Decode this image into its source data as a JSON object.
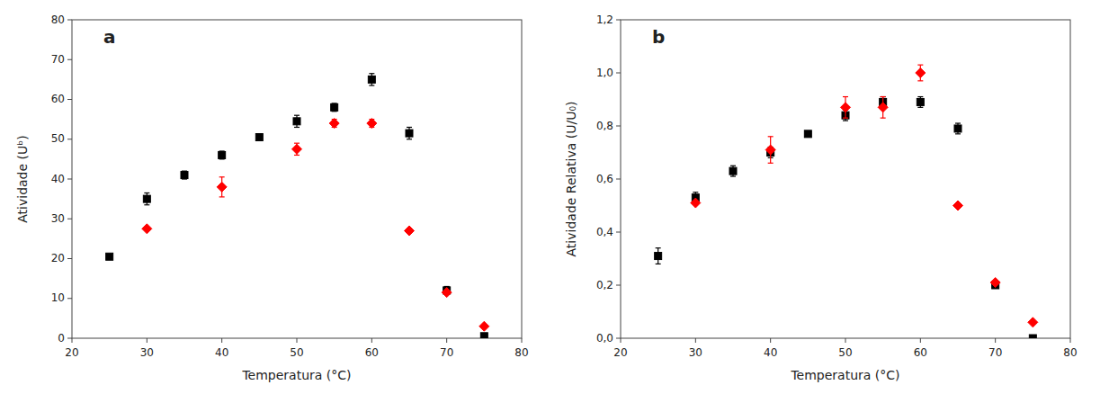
{
  "chart_data": [
    {
      "type": "scatter",
      "annotation": "a",
      "x_label": "Temperatura (°C)",
      "y_label": "Atividade (Uᵇ)",
      "xlim": [
        20,
        80
      ],
      "ylim": [
        0,
        80
      ],
      "xticks": [
        20,
        30,
        40,
        50,
        60,
        70,
        80
      ],
      "yticks": [
        0,
        10,
        20,
        30,
        40,
        50,
        60,
        70,
        80
      ],
      "grid": false,
      "series": [
        {
          "color": "#000000",
          "marker": "square",
          "x": [
            25,
            30,
            35,
            40,
            45,
            50,
            55,
            60,
            65,
            70,
            75
          ],
          "values": [
            20.5,
            35,
            41,
            46,
            50.5,
            54.5,
            58,
            65,
            51.5,
            12,
            0.5
          ],
          "errors": [
            0,
            1.5,
            1,
            1,
            0,
            1.5,
            1,
            1.5,
            1.5,
            1,
            0
          ]
        },
        {
          "color": "#ff0000",
          "marker": "diamond",
          "x": [
            30,
            40,
            50,
            55,
            60,
            65,
            70,
            75
          ],
          "values": [
            27.5,
            38,
            47.5,
            54,
            54,
            27,
            11.5,
            3
          ],
          "errors": [
            0,
            2.5,
            1.5,
            1,
            1,
            0,
            0,
            0
          ]
        }
      ]
    },
    {
      "type": "scatter",
      "annotation": "b",
      "x_label": "Temperatura (°C)",
      "y_label": "Atividade Relativa (U/U₀)",
      "xlim": [
        20,
        80
      ],
      "ylim": [
        0.0,
        1.2
      ],
      "xticks": [
        20,
        30,
        40,
        50,
        60,
        70,
        80
      ],
      "yticks": [
        {
          "value": 0.0,
          "label": "0,0"
        },
        {
          "value": 0.2,
          "label": "0,2"
        },
        {
          "value": 0.4,
          "label": "0,4"
        },
        {
          "value": 0.6,
          "label": "0,6"
        },
        {
          "value": 0.8,
          "label": "0,8"
        },
        {
          "value": 1.0,
          "label": "1,0"
        },
        {
          "value": 1.2,
          "label": "1,2"
        }
      ],
      "grid": false,
      "series": [
        {
          "color": "#000000",
          "marker": "square",
          "x": [
            25,
            30,
            35,
            40,
            45,
            50,
            55,
            60,
            65,
            70,
            75
          ],
          "values": [
            0.31,
            0.53,
            0.63,
            0.7,
            0.77,
            0.84,
            0.89,
            0.89,
            0.79,
            0.2,
            0.0
          ],
          "errors": [
            0.03,
            0.02,
            0.02,
            0.02,
            0.01,
            0.02,
            0.02,
            0.02,
            0.02,
            0.01,
            0
          ]
        },
        {
          "color": "#ff0000",
          "marker": "diamond",
          "x": [
            30,
            40,
            50,
            55,
            60,
            65,
            70,
            75
          ],
          "values": [
            0.51,
            0.71,
            0.87,
            0.87,
            1.0,
            0.5,
            0.21,
            0.06
          ],
          "errors": [
            0,
            0.05,
            0.04,
            0.04,
            0.03,
            0,
            0,
            0
          ]
        }
      ]
    }
  ]
}
